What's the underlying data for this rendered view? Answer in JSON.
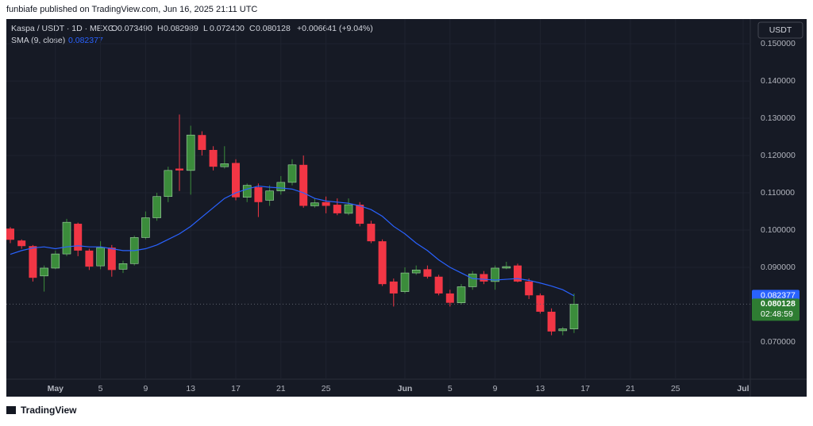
{
  "header": {
    "published": "funbiafe published on TradingView.com, Jun 16, 2025 21:11 UTC",
    "symbol": "Kaspa / USDT · 1D · MEXC",
    "ohlc": [
      {
        "key": "O",
        "value": "0.073490"
      },
      {
        "key": "H",
        "value": "0.082989"
      },
      {
        "key": "L",
        "value": "0.072400"
      },
      {
        "key": "C",
        "value": "0.080128"
      }
    ],
    "change": "+0.006641 (+9.04%)",
    "sma_label": "SMA (9, close)",
    "sma_value": "0.082377"
  },
  "currency": "USDT",
  "countdown": "02:48:59",
  "footer": "TradingView",
  "chart_data": {
    "type": "candlestick",
    "x": [
      "2025-04-27",
      "2025-04-28",
      "2025-04-29",
      "2025-04-30",
      "2025-05-01",
      "2025-05-02",
      "2025-05-03",
      "2025-05-04",
      "2025-05-05",
      "2025-05-06",
      "2025-05-07",
      "2025-05-08",
      "2025-05-09",
      "2025-05-10",
      "2025-05-11",
      "2025-05-12",
      "2025-05-13",
      "2025-05-14",
      "2025-05-15",
      "2025-05-16",
      "2025-05-17",
      "2025-05-18",
      "2025-05-19",
      "2025-05-20",
      "2025-05-21",
      "2025-05-22",
      "2025-05-23",
      "2025-05-24",
      "2025-05-25",
      "2025-05-26",
      "2025-05-27",
      "2025-05-28",
      "2025-05-29",
      "2025-05-30",
      "2025-05-31",
      "2025-06-01",
      "2025-06-02",
      "2025-06-03",
      "2025-06-04",
      "2025-06-05",
      "2025-06-06",
      "2025-06-07",
      "2025-06-08",
      "2025-06-09",
      "2025-06-10",
      "2025-06-11",
      "2025-06-12",
      "2025-06-13",
      "2025-06-14",
      "2025-06-15",
      "2025-06-16"
    ],
    "open": [
      0.1004,
      0.0972,
      0.0957,
      0.0877,
      0.0898,
      0.0936,
      0.1017,
      0.0945,
      0.0904,
      0.0953,
      0.0895,
      0.091,
      0.098,
      0.1033,
      0.109,
      0.1165,
      0.116,
      0.1255,
      0.1215,
      0.117,
      0.118,
      0.1088,
      0.1115,
      0.108,
      0.1105,
      0.1128,
      0.1175,
      0.1065,
      0.1075,
      0.1068,
      0.1045,
      0.1068,
      0.1017,
      0.097,
      0.0862,
      0.0835,
      0.0885,
      0.0895,
      0.0875,
      0.083,
      0.0805,
      0.0848,
      0.0882,
      0.0862,
      0.0898,
      0.0905,
      0.0862,
      0.0825,
      0.0781,
      0.073,
      0.07349
    ],
    "high": [
      0.1008,
      0.0975,
      0.096,
      0.0905,
      0.0945,
      0.103,
      0.102,
      0.095,
      0.097,
      0.096,
      0.0918,
      0.0985,
      0.105,
      0.11,
      0.117,
      0.131,
      0.128,
      0.1265,
      0.1225,
      0.1225,
      0.119,
      0.1125,
      0.1125,
      0.112,
      0.1145,
      0.119,
      0.12,
      0.1085,
      0.109,
      0.1085,
      0.1085,
      0.1075,
      0.1025,
      0.0975,
      0.087,
      0.09,
      0.0905,
      0.0905,
      0.088,
      0.084,
      0.0855,
      0.089,
      0.089,
      0.0905,
      0.0915,
      0.091,
      0.087,
      0.083,
      0.079,
      0.074,
      0.082989
    ],
    "low": [
      0.0965,
      0.095,
      0.0862,
      0.0835,
      0.0895,
      0.093,
      0.093,
      0.0893,
      0.0895,
      0.0875,
      0.0885,
      0.0905,
      0.0975,
      0.1025,
      0.1075,
      0.1105,
      0.1095,
      0.12,
      0.116,
      0.1165,
      0.108,
      0.1075,
      0.1035,
      0.1065,
      0.1095,
      0.112,
      0.106,
      0.106,
      0.1045,
      0.104,
      0.104,
      0.101,
      0.0965,
      0.085,
      0.0795,
      0.083,
      0.088,
      0.087,
      0.0825,
      0.0795,
      0.08,
      0.084,
      0.0855,
      0.084,
      0.0895,
      0.086,
      0.0815,
      0.0776,
      0.0718,
      0.0718,
      0.0724
    ],
    "close": [
      0.0974,
      0.0957,
      0.0872,
      0.0898,
      0.0936,
      0.1021,
      0.0945,
      0.0902,
      0.0953,
      0.0893,
      0.091,
      0.098,
      0.1033,
      0.109,
      0.116,
      0.116,
      0.1255,
      0.1215,
      0.117,
      0.1178,
      0.1088,
      0.112,
      0.1075,
      0.1105,
      0.1128,
      0.1175,
      0.1065,
      0.1073,
      0.1065,
      0.1045,
      0.1068,
      0.1017,
      0.097,
      0.0855,
      0.083,
      0.0885,
      0.0893,
      0.0875,
      0.083,
      0.0805,
      0.0848,
      0.0882,
      0.0862,
      0.0898,
      0.0902,
      0.0862,
      0.0825,
      0.0781,
      0.0728,
      0.0735,
      0.080128
    ],
    "up_color": "#3b8c3b",
    "down_color": "#f23645",
    "series": [
      {
        "name": "SMA (9, close)",
        "color": "#2962ff",
        "values": [
          0.0935,
          0.0945,
          0.0952,
          0.0955,
          0.095,
          0.0955,
          0.0958,
          0.0955,
          0.0955,
          0.095,
          0.0945,
          0.0945,
          0.095,
          0.096,
          0.0975,
          0.099,
          0.101,
          0.1035,
          0.106,
          0.1085,
          0.11,
          0.111,
          0.1118,
          0.1115,
          0.1113,
          0.111,
          0.11,
          0.1085,
          0.1078,
          0.1075,
          0.1072,
          0.1065,
          0.1055,
          0.1037,
          0.101,
          0.099,
          0.0965,
          0.0945,
          0.092,
          0.09,
          0.0885,
          0.087,
          0.0868,
          0.0866,
          0.0868,
          0.087,
          0.0865,
          0.0858,
          0.085,
          0.084,
          0.082377
        ]
      }
    ],
    "ylim": [
      0.06,
      0.1564
    ],
    "yticks": [
      {
        "value": 0.07,
        "label": "0.070000"
      },
      {
        "value": 0.09,
        "label": "0.090000"
      },
      {
        "value": 0.1,
        "label": "0.100000"
      },
      {
        "value": 0.11,
        "label": "0.110000"
      },
      {
        "value": 0.12,
        "label": "0.120000"
      },
      {
        "value": 0.13,
        "label": "0.130000"
      },
      {
        "value": 0.14,
        "label": "0.140000"
      },
      {
        "value": 0.15,
        "label": "0.150000"
      }
    ],
    "xticks": [
      {
        "value": "2025-05-01",
        "label": "May"
      },
      {
        "value": "2025-05-05",
        "label": "5"
      },
      {
        "value": "2025-05-09",
        "label": "9"
      },
      {
        "value": "2025-05-13",
        "label": "13"
      },
      {
        "value": "2025-05-17",
        "label": "17"
      },
      {
        "value": "2025-05-21",
        "label": "21"
      },
      {
        "value": "2025-05-25",
        "label": "25"
      },
      {
        "value": "2025-06-01",
        "label": "Jun"
      },
      {
        "value": "2025-06-05",
        "label": "5"
      },
      {
        "value": "2025-06-09",
        "label": "9"
      },
      {
        "value": "2025-06-13",
        "label": "13"
      },
      {
        "value": "2025-06-17",
        "label": "17"
      },
      {
        "value": "2025-06-21",
        "label": "21"
      },
      {
        "value": "2025-06-25",
        "label": "25"
      },
      {
        "value": "2025-07-01",
        "label": "Jul"
      }
    ],
    "grid": true
  }
}
